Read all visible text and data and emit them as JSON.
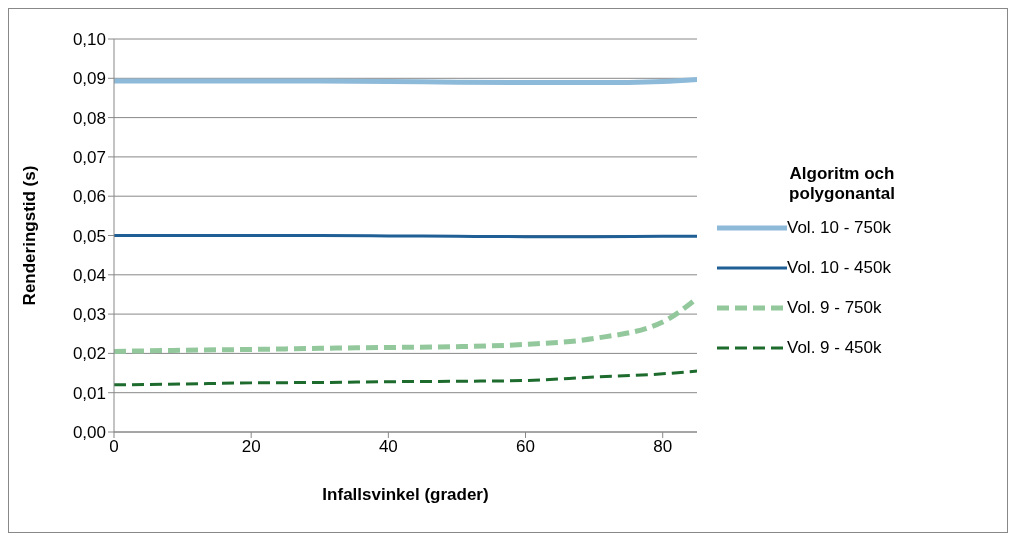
{
  "chart_data": {
    "type": "line",
    "xlabel": "Infallsvinkel (grader)",
    "ylabel": "Renderingstid (s)",
    "legend_title": "Algoritm och polygonantal",
    "x": [
      0,
      10,
      20,
      30,
      40,
      50,
      60,
      70,
      80,
      85
    ],
    "series": [
      {
        "name": "Vol. 10 - 750k",
        "color": "#8ebad9",
        "line_style": "solid",
        "values": [
          0.0893,
          0.0893,
          0.0893,
          0.0893,
          0.0892,
          0.089,
          0.0889,
          0.0889,
          0.0892,
          0.0897
        ]
      },
      {
        "name": "Vol. 10 - 450k",
        "color": "#1f5f96",
        "line_style": "solid",
        "values": [
          0.05,
          0.05,
          0.05,
          0.05,
          0.0499,
          0.0498,
          0.0497,
          0.0497,
          0.0498,
          0.0498
        ]
      },
      {
        "name": "Vol. 9 - 750k",
        "color": "#93c89c",
        "line_style": "dashed",
        "values": [
          0.0205,
          0.0208,
          0.021,
          0.0213,
          0.0215,
          0.0217,
          0.0223,
          0.0238,
          0.028,
          0.034
        ]
      },
      {
        "name": "Vol. 9 - 450k",
        "color": "#1e6b2e",
        "line_style": "dashed",
        "values": [
          0.012,
          0.0122,
          0.0125,
          0.0126,
          0.0128,
          0.0129,
          0.0131,
          0.014,
          0.0148,
          0.0155
        ]
      }
    ],
    "xlim": [
      0,
      85
    ],
    "xticks": [
      0,
      20,
      40,
      60,
      80
    ],
    "ylim": [
      0,
      0.1
    ],
    "yticks": [
      {
        "value": 0,
        "label": "0,00"
      },
      {
        "value": 0.01,
        "label": "0,01"
      },
      {
        "value": 0.02,
        "label": "0,02"
      },
      {
        "value": 0.03,
        "label": "0,03"
      },
      {
        "value": 0.04,
        "label": "0,04"
      },
      {
        "value": 0.05,
        "label": "0,05"
      },
      {
        "value": 0.06,
        "label": "0,06"
      },
      {
        "value": 0.07,
        "label": "0,07"
      },
      {
        "value": 0.08,
        "label": "0,08"
      },
      {
        "value": 0.09,
        "label": "0,09"
      },
      {
        "value": 0.1,
        "label": "0,10"
      }
    ],
    "grid": "y",
    "legend": "right",
    "marker": "none"
  }
}
